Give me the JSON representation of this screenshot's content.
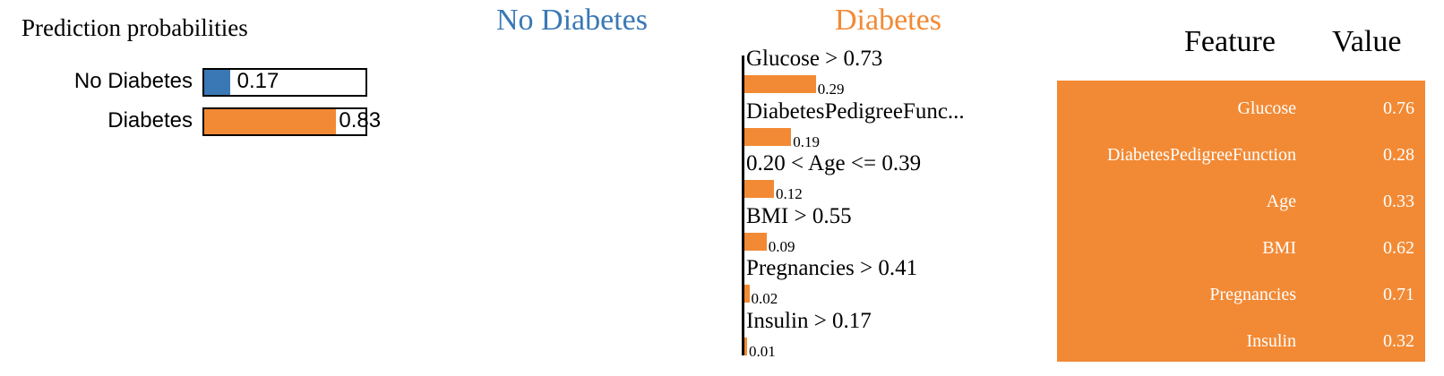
{
  "chart_data": [
    {
      "type": "bar",
      "title": "Prediction probabilities",
      "categories": [
        "No Diabetes",
        "Diabetes"
      ],
      "values": [
        0.17,
        0.83
      ],
      "value_labels": [
        "0.17",
        "0.83"
      ],
      "colors": [
        "#3a78b5",
        "#f28a35"
      ],
      "xlim": [
        0,
        1
      ]
    },
    {
      "type": "bar",
      "class_labels": {
        "negative": "No Diabetes",
        "positive": "Diabetes"
      },
      "class_colors": {
        "negative": "#3a78b5",
        "positive": "#f28a35"
      },
      "categories": [
        "Glucose > 0.73",
        "DiabetesPedigreeFunc...",
        "0.20 < Age <= 0.39",
        "BMI > 0.55",
        "Pregnancies > 0.41",
        "Insulin > 0.17"
      ],
      "values": [
        0.29,
        0.19,
        0.12,
        0.09,
        0.02,
        0.01
      ],
      "value_labels": [
        "0.29",
        "0.19",
        "0.12",
        "0.09",
        "0.02",
        "0.01"
      ],
      "bar_color": "#f28a35"
    },
    {
      "type": "table",
      "columns": [
        "Feature",
        "Value"
      ],
      "rows": [
        {
          "feature": "Glucose",
          "value": "0.76"
        },
        {
          "feature": "DiabetesPedigreeFunction",
          "value": "0.28"
        },
        {
          "feature": "Age",
          "value": "0.33"
        },
        {
          "feature": "BMI",
          "value": "0.62"
        },
        {
          "feature": "Pregnancies",
          "value": "0.71"
        },
        {
          "feature": "Insulin",
          "value": "0.32"
        }
      ],
      "background_color": "#f28a35"
    }
  ]
}
